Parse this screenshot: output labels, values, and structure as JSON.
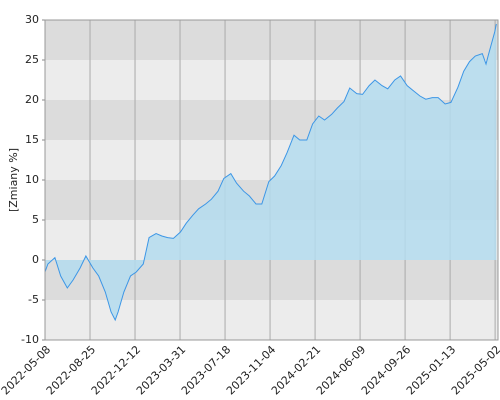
{
  "chart_data": {
    "type": "area",
    "ylabel": "[Zmiany %]",
    "x": [
      "2022-05-08",
      "2022-05-15",
      "2022-06-01",
      "2022-06-15",
      "2022-07-01",
      "2022-07-15",
      "2022-08-01",
      "2022-08-15",
      "2022-09-01",
      "2022-09-15",
      "2022-10-01",
      "2022-10-15",
      "2022-10-25",
      "2022-11-01",
      "2022-11-15",
      "2022-12-01",
      "2022-12-15",
      "2023-01-01",
      "2023-01-15",
      "2023-02-01",
      "2023-02-15",
      "2023-03-01",
      "2023-03-15",
      "2023-04-01",
      "2023-04-15",
      "2023-05-01",
      "2023-05-15",
      "2023-06-01",
      "2023-06-15",
      "2023-07-01",
      "2023-07-15",
      "2023-08-01",
      "2023-08-15",
      "2023-09-01",
      "2023-09-15",
      "2023-10-01",
      "2023-10-15",
      "2023-11-01",
      "2023-11-15",
      "2023-12-01",
      "2023-12-15",
      "2024-01-01",
      "2024-01-15",
      "2024-02-01",
      "2024-02-15",
      "2024-03-01",
      "2024-03-15",
      "2024-04-01",
      "2024-04-15",
      "2024-05-01",
      "2024-05-15",
      "2024-06-01",
      "2024-06-15",
      "2024-07-01",
      "2024-07-15",
      "2024-08-01",
      "2024-08-15",
      "2024-09-01",
      "2024-09-15",
      "2024-10-01",
      "2024-10-15",
      "2024-11-01",
      "2024-11-15",
      "2024-12-01",
      "2024-12-15",
      "2025-01-01",
      "2025-01-15",
      "2025-02-01",
      "2025-02-15",
      "2025-03-01",
      "2025-03-15",
      "2025-04-01",
      "2025-04-10",
      "2025-04-15",
      "2025-05-01",
      "2025-05-05"
    ],
    "series": [
      {
        "color": "#3c96e6",
        "fill": "#b4dcee",
        "values": [
          -1.5,
          -0.5,
          0.3,
          -2,
          -3.5,
          -2.5,
          -1,
          0.5,
          -1,
          -2,
          -4,
          -6.5,
          -7.5,
          -6.5,
          -4,
          -2,
          -1.5,
          -0.5,
          2.8,
          3.3,
          3,
          2.8,
          2.7,
          3.5,
          4.6,
          5.6,
          6.4,
          7,
          7.6,
          8.6,
          10.2,
          10.8,
          9.6,
          8.6,
          8,
          7,
          7,
          9.8,
          10.5,
          11.8,
          13.4,
          15.6,
          15,
          15,
          17,
          18,
          17.5,
          18.2,
          19,
          19.8,
          21.5,
          20.8,
          20.7,
          21.8,
          22.5,
          21.8,
          21.4,
          22.5,
          23,
          21.8,
          21.2,
          20.5,
          20.1,
          20.3,
          20.3,
          19.5,
          19.7,
          21.6,
          23.6,
          24.8,
          25.5,
          25.8,
          24.5,
          25.5,
          28.5,
          29.5
        ]
      }
    ],
    "xlim": [
      "2022-05-08",
      "2025-05-09"
    ],
    "xticks": [
      "2022-05-08",
      "2022-08-25",
      "2022-12-12",
      "2023-03-31",
      "2023-07-18",
      "2023-11-04",
      "2024-02-21",
      "2024-06-09",
      "2024-09-26",
      "2025-01-13",
      "2025-05-02"
    ],
    "ylim": [
      -10,
      30
    ],
    "yticks": [
      -10,
      -5,
      0,
      5,
      10,
      15,
      20,
      25,
      30
    ],
    "grid": true
  }
}
